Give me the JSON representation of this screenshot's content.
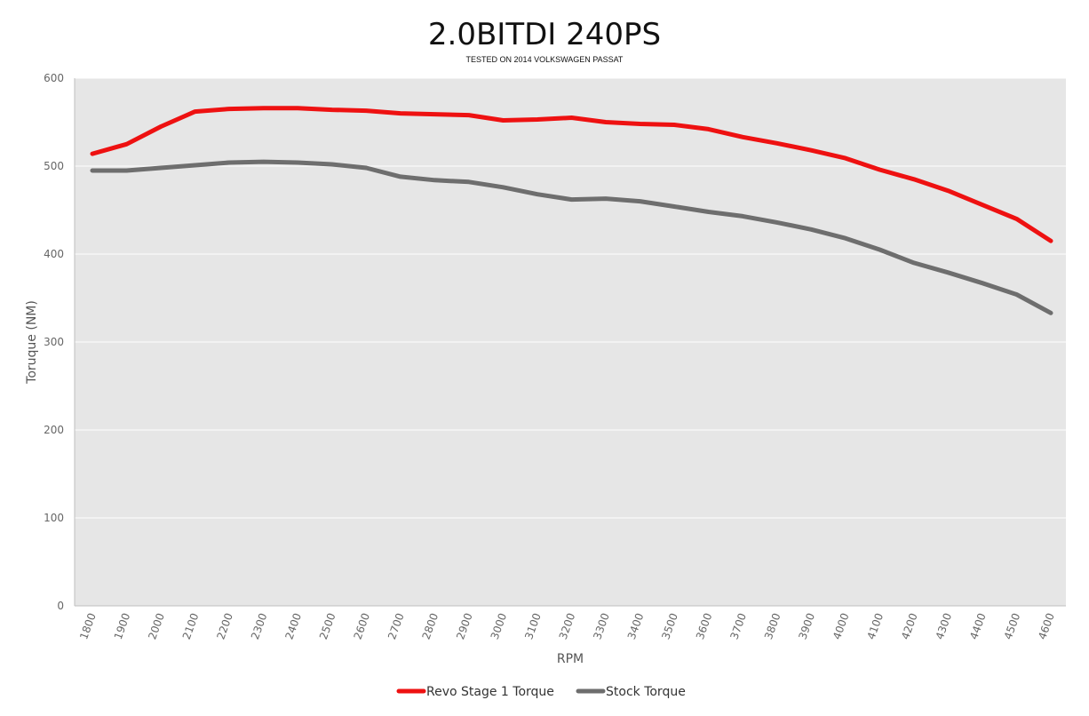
{
  "chart_data": {
    "type": "line",
    "title": "2.0BITDI 240PS",
    "subtitle": "TESTED ON 2014 VOLKSWAGEN PASSAT",
    "xlabel": "RPM",
    "ylabel": "Toruque (NM)",
    "ylim": [
      0,
      600
    ],
    "yticks": [
      0,
      100,
      200,
      300,
      400,
      500,
      600
    ],
    "categories": [
      "1800",
      "1900",
      "2000",
      "2100",
      "2200",
      "2300",
      "2400",
      "2500",
      "2600",
      "2700",
      "2800",
      "2900",
      "3000",
      "3100",
      "3200",
      "3300",
      "3400",
      "3500",
      "3600",
      "3700",
      "3800",
      "3900",
      "4000",
      "4100",
      "4200",
      "4300",
      "4400",
      "4500",
      "4600"
    ],
    "grid": "horizontal",
    "legend": "bottom",
    "series": [
      {
        "name": "Revo Stage 1 Torque",
        "color": "#ee1111",
        "values": [
          514,
          525,
          545,
          562,
          565,
          566,
          566,
          564,
          563,
          560,
          559,
          558,
          552,
          553,
          555,
          550,
          548,
          547,
          542,
          533,
          526,
          518,
          509,
          496,
          485,
          472,
          456,
          440,
          415
        ]
      },
      {
        "name": "Stock Torque",
        "color": "#6e6e6e",
        "values": [
          495,
          495,
          498,
          501,
          504,
          505,
          504,
          502,
          498,
          488,
          484,
          482,
          476,
          468,
          462,
          463,
          460,
          454,
          448,
          443,
          436,
          428,
          418,
          405,
          390,
          379,
          367,
          354,
          333
        ]
      }
    ]
  }
}
